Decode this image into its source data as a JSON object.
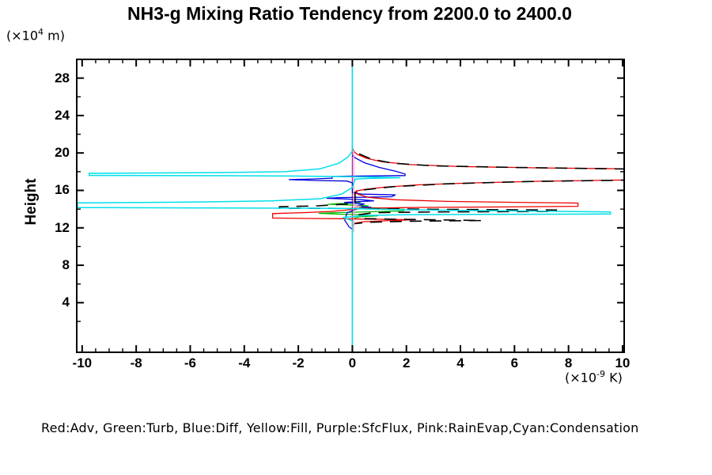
{
  "title": "NH3-g Mixing Ratio Tendency from 2200.0 to 2400.0",
  "y_axis": {
    "label": "Height",
    "unit_prefix": "(×10",
    "unit_exp": "4",
    "unit_suffix": " m)",
    "tick_labels": [
      4,
      8,
      12,
      16,
      20,
      24,
      28
    ],
    "minor_ticks": [
      2,
      6,
      10,
      14,
      18,
      22,
      26,
      30
    ]
  },
  "x_axis": {
    "unit_prefix": "(×10",
    "unit_exp": "-9",
    "unit_suffix": " K)",
    "tick_labels": [
      -10,
      -8,
      -6,
      -4,
      -2,
      0,
      2,
      4,
      6,
      8,
      10
    ],
    "minor_step": 0.5
  },
  "legend": {
    "text": "Red:Adv, Green:Turb, Blue:Diff, Yellow:Fill, Purple:SfcFlux, Pink:RainEvap,Cyan:Condensation"
  },
  "colors": {
    "axis": "#000000",
    "red_adv": "#ee0000",
    "green_turb": "#00bb00",
    "blue_diff": "#0000e0",
    "yellow_fill": "#e8d800",
    "purple_sfcflux": "#9b30d0",
    "pink_rainevap": "#ff9fb4",
    "cyan_condensation": "#00dfea",
    "black_total": "#000000"
  },
  "chart_data": {
    "type": "line",
    "title": "NH3-g Mixing Ratio Tendency from 2200.0 to 2400.0",
    "xlabel": "(×10^-9 K)",
    "ylabel": "Height (×10^4 m)",
    "xlim": [
      -10.2,
      10.06
    ],
    "ylim": [
      -1.3,
      30.0
    ],
    "grid": false,
    "legend_position": "bottom-text-line",
    "note": "x = mixing ratio tendency (×10^-9 K), y = height (×10^4 m); most series are zero (vertical line at x=0) except in the band between heights ~12 and ~20",
    "series": [
      {
        "name": "Fill",
        "color": "#e8d800",
        "width": 1.2,
        "points": [
          [
            0,
            29.9
          ],
          [
            0,
            -1.2
          ]
        ]
      },
      {
        "name": "SfcFlux",
        "color": "#9b30d0",
        "width": 1.2,
        "points": [
          [
            0,
            29.9
          ],
          [
            0,
            -1.2
          ]
        ]
      },
      {
        "name": "Turb",
        "color": "#00bb00",
        "width": 1.3,
        "points": [
          [
            0,
            14.85
          ],
          [
            0.3,
            14.68
          ],
          [
            -0.5,
            14.58
          ],
          [
            -0.9,
            14.52
          ],
          [
            -0.2,
            14.45
          ],
          [
            0.6,
            14.35
          ],
          [
            0.25,
            14.22
          ],
          [
            1.0,
            14.1
          ],
          [
            1.9,
            13.98
          ],
          [
            1.9,
            13.82
          ],
          [
            0.8,
            13.72
          ],
          [
            -0.6,
            13.62
          ],
          [
            -1.25,
            13.55
          ],
          [
            -0.4,
            13.45
          ],
          [
            0.5,
            13.38
          ],
          [
            0.95,
            13.28
          ],
          [
            0.3,
            13.18
          ],
          [
            0,
            13.0
          ]
        ]
      },
      {
        "name": "Diff",
        "color": "#0000e0",
        "width": 1.3,
        "points": [
          [
            0,
            19.75
          ],
          [
            0.12,
            19.45
          ],
          [
            0.45,
            18.95
          ],
          [
            1.0,
            18.45
          ],
          [
            1.6,
            18.05
          ],
          [
            1.95,
            17.75
          ],
          [
            1.95,
            17.58
          ],
          [
            0.8,
            17.55
          ],
          [
            -0.2,
            17.52
          ],
          [
            -0.75,
            17.48
          ],
          [
            -0.75,
            17.3
          ],
          [
            -1.5,
            17.22
          ],
          [
            -2.35,
            17.15
          ],
          [
            -1.2,
            17.05
          ],
          [
            -0.2,
            17.0
          ],
          [
            0,
            16.8
          ],
          [
            0,
            15.75
          ],
          [
            0.35,
            15.6
          ],
          [
            1.6,
            15.52
          ],
          [
            1.45,
            15.32
          ],
          [
            -0.5,
            15.22
          ],
          [
            -0.95,
            15.15
          ],
          [
            0.3,
            15.02
          ],
          [
            0.8,
            14.88
          ],
          [
            -0.3,
            14.72
          ],
          [
            0.45,
            14.55
          ],
          [
            0.15,
            14.35
          ],
          [
            0.7,
            14.18
          ],
          [
            0.2,
            14.05
          ],
          [
            -0.2,
            13.6
          ],
          [
            -0.28,
            12.8
          ],
          [
            -0.12,
            12.1
          ],
          [
            0,
            11.85
          ]
        ]
      },
      {
        "name": "Adv",
        "color": "#ee0000",
        "width": 1.3,
        "points": [
          [
            0,
            20.5
          ],
          [
            0.08,
            20.1
          ],
          [
            0.18,
            19.85
          ],
          [
            0.5,
            19.45
          ],
          [
            1.1,
            19.05
          ],
          [
            2.2,
            18.75
          ],
          [
            4,
            18.55
          ],
          [
            7,
            18.4
          ],
          [
            10.2,
            18.3
          ],
          [
            10.2,
            17.12
          ],
          [
            7,
            16.98
          ],
          [
            4.5,
            16.8
          ],
          [
            2.5,
            16.6
          ],
          [
            1.2,
            16.35
          ],
          [
            0.45,
            16.1
          ],
          [
            0.15,
            15.95
          ],
          [
            0.2,
            15.6
          ],
          [
            0.6,
            15.25
          ],
          [
            1.6,
            15.0
          ],
          [
            3.5,
            14.82
          ],
          [
            6,
            14.72
          ],
          [
            8.35,
            14.65
          ],
          [
            8.35,
            14.3
          ],
          [
            5,
            14.22
          ],
          [
            2.5,
            14.18
          ],
          [
            0.5,
            14.1
          ],
          [
            -0.8,
            13.75
          ],
          [
            -1.8,
            13.62
          ],
          [
            -2.95,
            13.52
          ],
          [
            -2.95,
            13.05
          ],
          [
            -1.5,
            13.0
          ],
          [
            -0.3,
            12.97
          ],
          [
            0.5,
            12.93
          ],
          [
            1.4,
            12.9
          ],
          [
            2.3,
            12.86
          ],
          [
            1.2,
            12.75
          ],
          [
            0.4,
            12.65
          ],
          [
            0.1,
            12.5
          ],
          [
            0,
            12.2
          ]
        ]
      },
      {
        "name": "Total (black dashed, not in legend)",
        "color": "#000000",
        "width": 1.6,
        "dash": "15 10",
        "points": [
          [
            0.25,
            19.9
          ],
          [
            0.7,
            19.35
          ],
          [
            1.5,
            18.9
          ],
          [
            3,
            18.62
          ],
          [
            6,
            18.45
          ],
          [
            10.2,
            18.28
          ],
          [
            10.2,
            17.1
          ],
          [
            6.5,
            16.95
          ],
          [
            3.5,
            16.7
          ],
          [
            1.5,
            16.4
          ],
          [
            0.4,
            16.05
          ],
          [
            0.1,
            15.8
          ],
          [
            0.1,
            14.6
          ],
          [
            -1.3,
            14.35
          ],
          [
            -2.7,
            14.25
          ],
          [
            -2.7,
            14.1
          ],
          [
            -1,
            14.08
          ],
          [
            0.5,
            14.05
          ],
          [
            3,
            13.98
          ],
          [
            7.55,
            13.9
          ],
          [
            7.55,
            13.75
          ],
          [
            3,
            13.7
          ],
          [
            0.8,
            13.62
          ],
          [
            0.25,
            13.4
          ],
          [
            0.3,
            13.0
          ],
          [
            1.5,
            12.92
          ],
          [
            3.2,
            12.85
          ],
          [
            4.8,
            12.78
          ],
          [
            2,
            12.7
          ],
          [
            0.6,
            12.6
          ],
          [
            0.1,
            12.45
          ]
        ]
      },
      {
        "name": "RainEvap",
        "color": "#ff9fb4",
        "width": 1.3,
        "points": [
          [
            0.05,
            20.3
          ],
          [
            0.05,
            14.4
          ],
          [
            0.32,
            14.3
          ],
          [
            0.05,
            14.2
          ],
          [
            0.05,
            11.55
          ]
        ]
      },
      {
        "name": "Condensation",
        "color": "#00dfea",
        "width": 1.5,
        "points": [
          [
            0,
            30
          ],
          [
            0,
            20.2
          ],
          [
            -0.15,
            19.6
          ],
          [
            -0.5,
            18.9
          ],
          [
            -1.2,
            18.3
          ],
          [
            -2.5,
            18.0
          ],
          [
            -5,
            17.9
          ],
          [
            -9.74,
            17.83
          ],
          [
            -9.74,
            17.6
          ],
          [
            -5,
            17.57
          ],
          [
            -2,
            17.53
          ],
          [
            -0.5,
            17.48
          ],
          [
            0.9,
            17.42
          ],
          [
            1.78,
            17.35
          ],
          [
            0.6,
            17.28
          ],
          [
            0.1,
            17.2
          ],
          [
            0,
            16.3
          ],
          [
            -0.4,
            15.6
          ],
          [
            -1.2,
            15.1
          ],
          [
            -3,
            14.88
          ],
          [
            -6,
            14.75
          ],
          [
            -10.18,
            14.66
          ],
          [
            -10.18,
            14.16
          ],
          [
            -6,
            14.13
          ],
          [
            -2,
            14.1
          ],
          [
            -0.3,
            14.07
          ],
          [
            0.5,
            14.02
          ],
          [
            2,
            13.93
          ],
          [
            5,
            13.83
          ],
          [
            9.55,
            13.7
          ],
          [
            9.55,
            13.48
          ],
          [
            5,
            13.44
          ],
          [
            2,
            13.4
          ],
          [
            0.5,
            13.33
          ],
          [
            -0.35,
            13.1
          ],
          [
            -0.1,
            12.85
          ],
          [
            0,
            12.7
          ],
          [
            0,
            -1.3
          ]
        ]
      }
    ]
  }
}
